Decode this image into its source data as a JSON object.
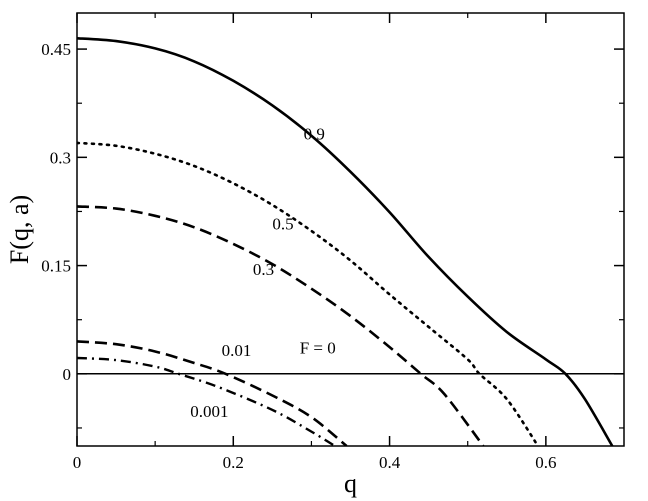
{
  "chart_data": {
    "type": "line",
    "title": "",
    "xlabel": "q",
    "ylabel": "F(q, a)",
    "xlim": [
      0,
      0.7
    ],
    "ylim": [
      -0.1,
      0.5
    ],
    "x_ticks": [
      0,
      0.2,
      0.4,
      0.6
    ],
    "x_tick_labels": [
      "0",
      "0.2",
      "0.4",
      "0.6"
    ],
    "y_ticks": [
      0,
      0.15,
      0.3,
      0.45
    ],
    "y_tick_labels": [
      "0",
      "0.15",
      "0.3",
      "0.45"
    ],
    "grid": false,
    "legend": "none",
    "series": [
      {
        "label": "0.9",
        "style": "solid",
        "x": [
          0,
          0.05,
          0.1,
          0.15,
          0.2,
          0.25,
          0.3,
          0.35,
          0.4,
          0.45,
          0.5,
          0.55,
          0.6,
          0.625,
          0.65,
          0.685
        ],
        "y": [
          0.465,
          0.461,
          0.451,
          0.433,
          0.406,
          0.372,
          0.33,
          0.28,
          0.224,
          0.162,
          0.107,
          0.058,
          0.02,
          0.0,
          -0.035,
          -0.1
        ]
      },
      {
        "label": "0.5",
        "style": "dotted",
        "x": [
          0,
          0.05,
          0.1,
          0.15,
          0.2,
          0.25,
          0.3,
          0.35,
          0.4,
          0.45,
          0.5,
          0.515,
          0.55,
          0.59
        ],
        "y": [
          0.32,
          0.316,
          0.305,
          0.288,
          0.264,
          0.234,
          0.198,
          0.157,
          0.11,
          0.065,
          0.02,
          0.0,
          -0.035,
          -0.1
        ]
      },
      {
        "label": "0.3",
        "style": "dashed",
        "x": [
          0,
          0.05,
          0.1,
          0.15,
          0.2,
          0.25,
          0.3,
          0.35,
          0.4,
          0.44,
          0.47,
          0.52
        ],
        "y": [
          0.232,
          0.229,
          0.219,
          0.203,
          0.18,
          0.152,
          0.118,
          0.08,
          0.037,
          0.0,
          -0.028,
          -0.1
        ]
      },
      {
        "label": "0.01",
        "style": "dashed",
        "x": [
          0,
          0.05,
          0.1,
          0.15,
          0.19,
          0.25,
          0.3,
          0.345
        ],
        "y": [
          0.045,
          0.041,
          0.031,
          0.015,
          0.0,
          -0.03,
          -0.06,
          -0.1
        ]
      },
      {
        "label": "0.001",
        "style": "dashdot",
        "x": [
          0,
          0.05,
          0.1,
          0.13,
          0.18,
          0.25,
          0.3,
          0.33
        ],
        "y": [
          0.022,
          0.019,
          0.01,
          0.0,
          -0.018,
          -0.05,
          -0.08,
          -0.1
        ]
      },
      {
        "label": "F = 0",
        "style": "solid-thin",
        "x": [
          0,
          0.7
        ],
        "y": [
          0,
          0
        ]
      }
    ],
    "annotations": [
      {
        "text": "0.9",
        "x": 0.29,
        "y": 0.325
      },
      {
        "text": "0.5",
        "x": 0.25,
        "y": 0.2
      },
      {
        "text": "0.3",
        "x": 0.225,
        "y": 0.137
      },
      {
        "text": "0.01",
        "x": 0.185,
        "y": 0.025
      },
      {
        "text": "F = 0",
        "x": 0.285,
        "y": 0.028
      },
      {
        "text": "0.001",
        "x": 0.145,
        "y": -0.06
      }
    ]
  }
}
